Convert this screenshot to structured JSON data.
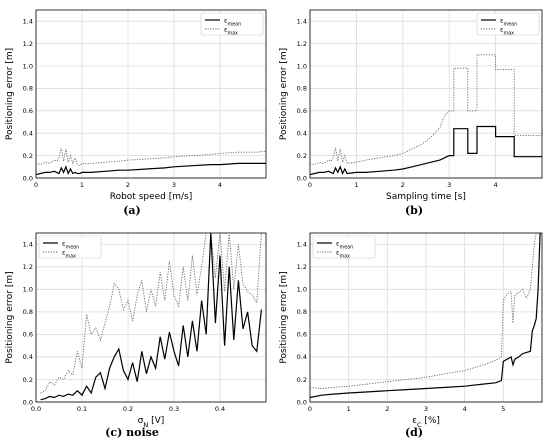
{
  "captions": [
    "(a)",
    "(b)",
    "(c) noise",
    "(d)"
  ],
  "legend": {
    "mean": "ε_mean",
    "max": "ε_max"
  },
  "colors": {
    "mean": "#000000",
    "max": "#666666",
    "grid": "#dcdcdc"
  },
  "chart_data": [
    {
      "type": "line",
      "xlabel": "Robot speed [m/s]",
      "ylabel": "Positioning error [m]",
      "xlim": [
        0,
        5
      ],
      "ylim": [
        0,
        1.5
      ],
      "xticks": [
        "0",
        "1",
        "2",
        "3",
        "4"
      ],
      "yticks": [
        "0.0",
        "0.2",
        "0.4",
        "0.6",
        "0.8",
        "1.0",
        "1.2",
        "1.4"
      ],
      "xtick_values": [
        0,
        1,
        2,
        3,
        4
      ],
      "ytick_values": [
        0,
        0.2,
        0.4,
        0.6,
        0.8,
        1.0,
        1.2,
        1.4
      ],
      "grid": true,
      "legend_position": "top-right",
      "series": [
        {
          "name": "ε_mean",
          "x": [
            0.0,
            0.1,
            0.2,
            0.3,
            0.4,
            0.45,
            0.5,
            0.55,
            0.6,
            0.65,
            0.7,
            0.75,
            0.8,
            0.85,
            0.9,
            0.95,
            1.0,
            1.2,
            1.5,
            1.8,
            2.0,
            2.4,
            2.8,
            3.0,
            3.4,
            3.8,
            4.0,
            4.4,
            4.8,
            5.0
          ],
          "y": [
            0.03,
            0.04,
            0.05,
            0.05,
            0.06,
            0.05,
            0.04,
            0.09,
            0.05,
            0.1,
            0.04,
            0.08,
            0.04,
            0.05,
            0.04,
            0.04,
            0.05,
            0.05,
            0.06,
            0.07,
            0.07,
            0.08,
            0.09,
            0.1,
            0.11,
            0.12,
            0.12,
            0.13,
            0.13,
            0.13
          ]
        },
        {
          "name": "ε_max",
          "x": [
            0.0,
            0.1,
            0.2,
            0.3,
            0.4,
            0.45,
            0.5,
            0.55,
            0.6,
            0.65,
            0.7,
            0.75,
            0.8,
            0.85,
            0.9,
            0.95,
            1.0,
            1.2,
            1.5,
            1.8,
            2.0,
            2.4,
            2.8,
            3.0,
            3.4,
            3.8,
            4.0,
            4.4,
            4.8,
            5.0
          ],
          "y": [
            0.13,
            0.12,
            0.14,
            0.13,
            0.16,
            0.15,
            0.18,
            0.27,
            0.15,
            0.26,
            0.14,
            0.2,
            0.13,
            0.18,
            0.12,
            0.11,
            0.13,
            0.13,
            0.14,
            0.15,
            0.16,
            0.17,
            0.18,
            0.19,
            0.2,
            0.21,
            0.22,
            0.23,
            0.23,
            0.24
          ]
        }
      ]
    },
    {
      "type": "line",
      "xlabel": "Sampling time [s]",
      "ylabel": "Positioning error [m]",
      "xlim": [
        0,
        5
      ],
      "ylim": [
        0,
        1.5
      ],
      "xticks": [
        "0",
        "1",
        "2",
        "3",
        "4"
      ],
      "yticks": [
        "0.0",
        "0.2",
        "0.4",
        "0.6",
        "0.8",
        "1.0",
        "1.2",
        "1.4"
      ],
      "xtick_values": [
        0,
        1,
        2,
        3,
        4
      ],
      "ytick_values": [
        0,
        0.2,
        0.4,
        0.6,
        0.8,
        1.0,
        1.2,
        1.4
      ],
      "grid": true,
      "legend_position": "top-right",
      "series": [
        {
          "name": "ε_mean",
          "x": [
            0.0,
            0.1,
            0.2,
            0.3,
            0.4,
            0.45,
            0.5,
            0.55,
            0.6,
            0.65,
            0.7,
            0.75,
            0.8,
            1.0,
            1.2,
            1.5,
            1.8,
            2.0,
            2.2,
            2.4,
            2.6,
            2.8,
            2.9,
            3.0,
            3.1,
            3.1,
            3.4,
            3.4,
            3.6,
            3.6,
            4.0,
            4.0,
            4.4,
            4.4,
            5.0
          ],
          "y": [
            0.03,
            0.04,
            0.05,
            0.05,
            0.06,
            0.05,
            0.04,
            0.09,
            0.05,
            0.1,
            0.04,
            0.08,
            0.04,
            0.05,
            0.05,
            0.06,
            0.07,
            0.08,
            0.1,
            0.12,
            0.14,
            0.16,
            0.18,
            0.2,
            0.2,
            0.44,
            0.44,
            0.22,
            0.22,
            0.46,
            0.46,
            0.37,
            0.37,
            0.19,
            0.19
          ]
        },
        {
          "name": "ε_max",
          "x": [
            0.0,
            0.1,
            0.2,
            0.3,
            0.4,
            0.45,
            0.5,
            0.55,
            0.6,
            0.65,
            0.7,
            0.75,
            0.8,
            1.0,
            1.2,
            1.5,
            1.8,
            2.0,
            2.2,
            2.4,
            2.6,
            2.8,
            2.9,
            3.0,
            3.1,
            3.1,
            3.4,
            3.4,
            3.6,
            3.6,
            4.0,
            4.0,
            4.4,
            4.4,
            5.0
          ],
          "y": [
            0.13,
            0.12,
            0.14,
            0.13,
            0.16,
            0.15,
            0.18,
            0.27,
            0.15,
            0.26,
            0.14,
            0.2,
            0.13,
            0.14,
            0.16,
            0.18,
            0.2,
            0.22,
            0.26,
            0.3,
            0.36,
            0.45,
            0.56,
            0.6,
            0.6,
            0.98,
            0.98,
            0.6,
            0.6,
            1.1,
            1.1,
            0.97,
            0.97,
            0.38,
            0.38
          ]
        }
      ]
    },
    {
      "type": "line",
      "xlabel": "σ_N [V]",
      "ylabel": "Positioning error [m]",
      "xlim": [
        0,
        0.5
      ],
      "ylim": [
        0,
        1.5
      ],
      "xticks": [
        "0.0",
        "0.1",
        "0.2",
        "0.3",
        "0.4"
      ],
      "yticks": [
        "0.0",
        "0.2",
        "0.4",
        "0.6",
        "0.8",
        "1.0",
        "1.2",
        "1.4"
      ],
      "xtick_values": [
        0,
        0.1,
        0.2,
        0.3,
        0.4
      ],
      "ytick_values": [
        0,
        0.2,
        0.4,
        0.6,
        0.8,
        1.0,
        1.2,
        1.4
      ],
      "grid": true,
      "legend_position": "top-left",
      "series": [
        {
          "name": "ε_mean",
          "x": [
            0.01,
            0.02,
            0.03,
            0.04,
            0.05,
            0.06,
            0.07,
            0.08,
            0.09,
            0.1,
            0.11,
            0.12,
            0.13,
            0.14,
            0.15,
            0.16,
            0.17,
            0.18,
            0.19,
            0.2,
            0.21,
            0.22,
            0.23,
            0.24,
            0.25,
            0.26,
            0.27,
            0.28,
            0.29,
            0.3,
            0.31,
            0.32,
            0.33,
            0.34,
            0.35,
            0.36,
            0.37,
            0.38,
            0.39,
            0.4,
            0.41,
            0.42,
            0.43,
            0.44,
            0.45,
            0.46,
            0.47,
            0.48,
            0.49
          ],
          "y": [
            0.02,
            0.03,
            0.05,
            0.04,
            0.06,
            0.05,
            0.07,
            0.06,
            0.1,
            0.06,
            0.14,
            0.08,
            0.22,
            0.26,
            0.12,
            0.3,
            0.4,
            0.47,
            0.28,
            0.2,
            0.35,
            0.18,
            0.45,
            0.25,
            0.4,
            0.3,
            0.58,
            0.38,
            0.62,
            0.45,
            0.32,
            0.68,
            0.4,
            0.72,
            0.45,
            0.9,
            0.6,
            1.5,
            0.7,
            1.3,
            0.5,
            1.2,
            0.55,
            1.08,
            0.65,
            0.8,
            0.5,
            0.45,
            0.82
          ]
        },
        {
          "name": "ε_max",
          "x": [
            0.01,
            0.02,
            0.03,
            0.04,
            0.05,
            0.06,
            0.07,
            0.08,
            0.09,
            0.1,
            0.11,
            0.12,
            0.13,
            0.14,
            0.15,
            0.16,
            0.17,
            0.18,
            0.19,
            0.2,
            0.21,
            0.22,
            0.23,
            0.24,
            0.25,
            0.26,
            0.27,
            0.28,
            0.29,
            0.3,
            0.31,
            0.32,
            0.33,
            0.34,
            0.35,
            0.36,
            0.37,
            0.38,
            0.39,
            0.4,
            0.41,
            0.42,
            0.43,
            0.44,
            0.45,
            0.46,
            0.47,
            0.48,
            0.49
          ],
          "y": [
            0.08,
            0.1,
            0.18,
            0.15,
            0.22,
            0.2,
            0.28,
            0.24,
            0.45,
            0.3,
            0.78,
            0.6,
            0.66,
            0.55,
            0.7,
            0.85,
            1.05,
            1.0,
            0.82,
            0.9,
            0.72,
            0.95,
            1.08,
            0.8,
            1.0,
            0.85,
            1.15,
            0.9,
            1.25,
            0.95,
            0.85,
            1.2,
            0.9,
            1.3,
            0.95,
            1.2,
            1.5,
            1.5,
            1.1,
            1.5,
            0.98,
            1.5,
            1.0,
            1.4,
            1.05,
            0.98,
            0.95,
            0.88,
            1.5
          ]
        }
      ]
    },
    {
      "type": "line",
      "xlabel": "ε_C [%]",
      "ylabel": "Positioning error [m]",
      "xlim": [
        0,
        6
      ],
      "ylim": [
        0,
        1.5
      ],
      "xticks": [
        "0",
        "1",
        "2",
        "3",
        "4",
        "5"
      ],
      "yticks": [
        "0.0",
        "0.2",
        "0.4",
        "0.6",
        "0.8",
        "1.0",
        "1.2",
        "1.4"
      ],
      "xtick_values": [
        0,
        1,
        2,
        3,
        4,
        5
      ],
      "ytick_values": [
        0,
        0.2,
        0.4,
        0.6,
        0.8,
        1.0,
        1.2,
        1.4
      ],
      "grid": true,
      "legend_position": "top-left",
      "series": [
        {
          "name": "ε_mean",
          "x": [
            0.0,
            0.3,
            0.6,
            1.0,
            1.5,
            2.0,
            2.5,
            3.0,
            3.5,
            4.0,
            4.5,
            4.8,
            4.95,
            5.0,
            5.1,
            5.2,
            5.25,
            5.3,
            5.4,
            5.5,
            5.6,
            5.7,
            5.75,
            5.8,
            5.85,
            5.9,
            5.95
          ],
          "y": [
            0.04,
            0.06,
            0.07,
            0.08,
            0.09,
            0.1,
            0.11,
            0.12,
            0.13,
            0.14,
            0.16,
            0.17,
            0.19,
            0.36,
            0.38,
            0.4,
            0.33,
            0.38,
            0.4,
            0.43,
            0.44,
            0.45,
            0.63,
            0.68,
            0.74,
            1.0,
            1.5
          ]
        },
        {
          "name": "ε_max",
          "x": [
            0.0,
            0.3,
            0.6,
            1.0,
            1.5,
            2.0,
            2.5,
            3.0,
            3.5,
            4.0,
            4.5,
            4.8,
            4.95,
            5.0,
            5.1,
            5.2,
            5.25,
            5.3,
            5.4,
            5.5,
            5.6,
            5.7,
            5.75,
            5.8,
            5.85
          ],
          "y": [
            0.13,
            0.12,
            0.13,
            0.14,
            0.16,
            0.18,
            0.2,
            0.22,
            0.25,
            0.28,
            0.33,
            0.37,
            0.4,
            0.9,
            0.96,
            0.98,
            0.7,
            0.95,
            0.97,
            1.0,
            0.92,
            1.0,
            1.2,
            1.4,
            1.5
          ]
        }
      ]
    }
  ]
}
